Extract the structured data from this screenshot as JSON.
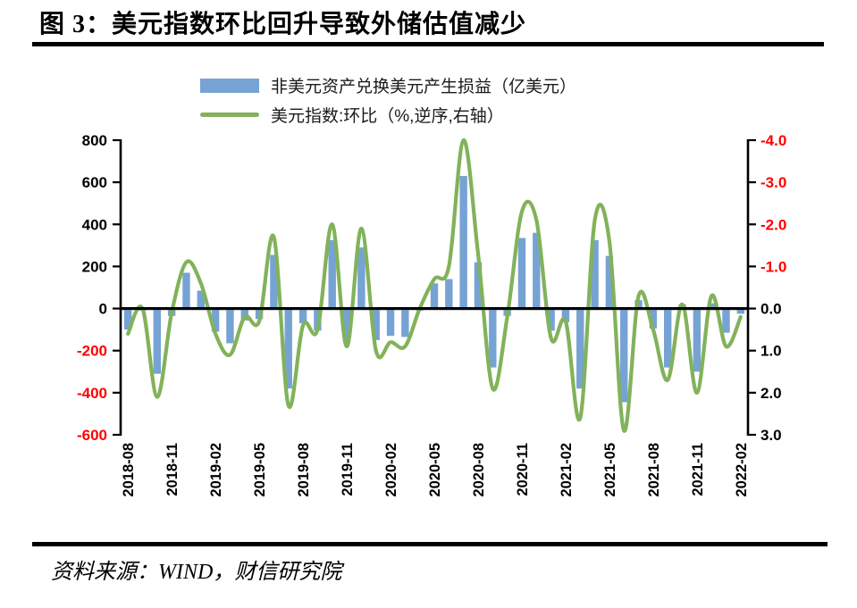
{
  "figure": {
    "title": "图 3：美元指数环比回升导致外储估值减少",
    "source": "资料来源：WIND，财信研究院"
  },
  "chart_data": {
    "type": "bar+line",
    "x": [
      "2018-08",
      "2018-09",
      "2018-10",
      "2018-11",
      "2018-12",
      "2019-01",
      "2019-02",
      "2019-03",
      "2019-04",
      "2019-05",
      "2019-06",
      "2019-07",
      "2019-08",
      "2019-09",
      "2019-10",
      "2019-11",
      "2019-12",
      "2020-01",
      "2020-02",
      "2020-03",
      "2020-04",
      "2020-05",
      "2020-06",
      "2020-07",
      "2020-08",
      "2020-09",
      "2020-10",
      "2020-11",
      "2020-12",
      "2021-01",
      "2021-02",
      "2021-03",
      "2021-04",
      "2021-05",
      "2021-06",
      "2021-07",
      "2021-08",
      "2021-09",
      "2021-10",
      "2021-11",
      "2021-12",
      "2022-01",
      "2022-02"
    ],
    "x_tick_labels": [
      "2018-08",
      "2018-11",
      "2019-02",
      "2019-05",
      "2019-08",
      "2019-11",
      "2020-02",
      "2020-05",
      "2020-08",
      "2020-11",
      "2021-02",
      "2021-05",
      "2021-08",
      "2021-11",
      "2022-02"
    ],
    "series": [
      {
        "name": "非美元资产兑换美元产生损益（亿美元）",
        "type": "bar",
        "axis": "left",
        "color": "#76A3D4",
        "values": [
          -100,
          -10,
          -310,
          -35,
          170,
          85,
          -110,
          -165,
          -57,
          -50,
          255,
          -380,
          -70,
          -105,
          325,
          -160,
          290,
          -150,
          -130,
          -135,
          -10,
          120,
          140,
          630,
          220,
          -280,
          -35,
          335,
          360,
          -105,
          -65,
          -380,
          325,
          250,
          -445,
          40,
          -95,
          -280,
          20,
          -300,
          25,
          -115,
          -25
        ]
      },
      {
        "name": "美元指数:环比（%,逆序,右轴）",
        "type": "line",
        "axis": "right",
        "color": "#82B25A",
        "values": [
          0.6,
          0.0,
          2.1,
          0.1,
          -1.1,
          -0.6,
          0.6,
          1.1,
          0.2,
          0.3,
          -1.7,
          2.3,
          0.4,
          0.5,
          -2.0,
          0.9,
          -1.9,
          1.0,
          0.8,
          0.9,
          0.0,
          -0.7,
          -1.0,
          -4.0,
          -1.3,
          1.9,
          0.2,
          -2.3,
          -2.1,
          0.7,
          0.3,
          2.6,
          -2.1,
          -1.6,
          2.9,
          -0.3,
          0.5,
          1.7,
          -0.1,
          2.0,
          -0.3,
          0.9,
          0.2
        ]
      }
    ],
    "left_axis": {
      "min": -600,
      "max": 800,
      "ticks": [
        800,
        600,
        400,
        200,
        0,
        -200,
        -400,
        -600
      ]
    },
    "right_axis": {
      "min": -4.0,
      "max": 3.0,
      "inverted": true,
      "ticks": [
        -4.0,
        -3.0,
        -2.0,
        -1.0,
        0.0,
        1.0,
        2.0,
        3.0
      ]
    },
    "negative_tick_color": "#FF0000",
    "positive_tick_color": "#000000",
    "grid": false,
    "legend_position": "top-center"
  }
}
